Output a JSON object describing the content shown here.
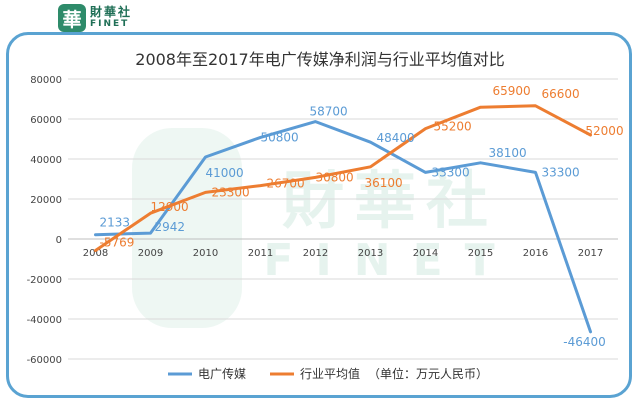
{
  "brand": {
    "cn": "財華社",
    "en": "FINET",
    "mark": "華"
  },
  "watermark": {
    "cn": "財華社",
    "en": "FINET"
  },
  "chart_data": {
    "type": "line",
    "title": "2008年至2017年电广传媒净利润与行业平均值对比",
    "x": [
      "2008",
      "2009",
      "2010",
      "2011",
      "2012",
      "2013",
      "2014",
      "2015",
      "2016",
      "2017"
    ],
    "ylim": [
      -60000,
      80000
    ],
    "yticks": [
      -60000,
      -40000,
      -20000,
      0,
      20000,
      40000,
      60000,
      80000
    ],
    "grid": true,
    "legend_position": "bottom",
    "legend_note": "（单位：万元人民币）",
    "series": [
      {
        "name": "电广传媒",
        "color": "#5b9bd5",
        "values": [
          2133,
          2942,
          41000,
          50800,
          58700,
          48400,
          33300,
          38100,
          33300,
          -46400
        ]
      },
      {
        "name": "行业平均值",
        "color": "#ed7d31",
        "values": [
          -5769,
          12900,
          23300,
          26700,
          30800,
          36100,
          55200,
          65900,
          66600,
          52000
        ]
      }
    ]
  }
}
